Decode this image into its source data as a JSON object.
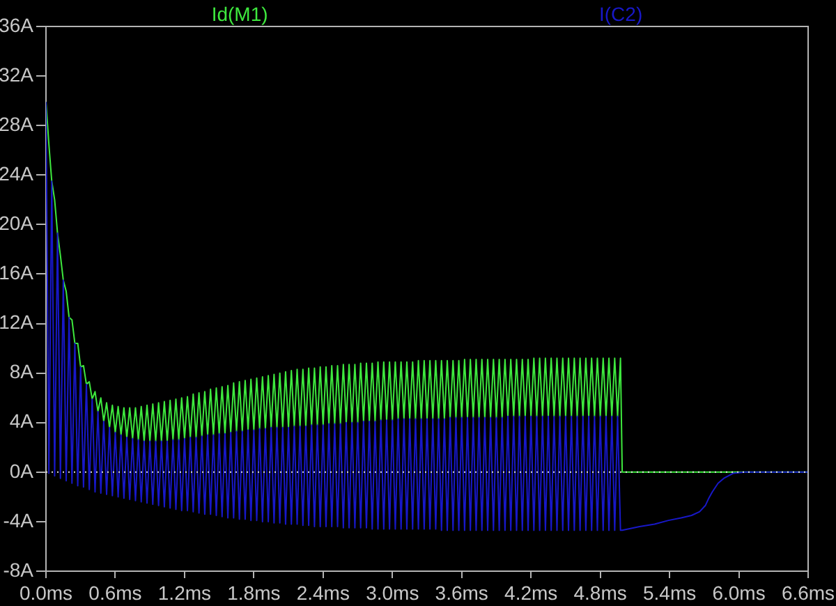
{
  "chart_data": {
    "type": "line",
    "x": [
      0,
      0.025,
      0.05,
      0.075,
      0.1,
      0.125,
      0.15,
      0.175,
      0.2,
      0.225,
      0.25,
      0.275,
      0.3,
      0.325,
      0.35,
      0.375,
      0.4,
      0.425,
      0.45,
      0.475,
      0.5,
      0.525,
      0.55,
      0.575,
      0.6,
      0.625,
      0.65,
      0.675,
      0.7,
      0.725,
      0.75,
      0.775,
      0.8,
      0.825,
      0.85,
      0.875,
      0.9,
      0.925,
      0.95,
      0.975,
      1,
      1.025,
      1.05,
      1.075,
      1.1,
      1.125,
      1.15,
      1.175,
      1.2,
      1.225,
      1.25,
      1.275,
      1.3,
      1.325,
      1.35,
      1.375,
      1.4,
      1.425,
      1.45,
      1.475,
      1.5,
      1.525,
      1.55,
      1.575,
      1.6,
      1.625,
      1.65,
      1.675,
      1.7,
      1.725,
      1.75,
      1.775,
      1.8,
      1.825,
      1.85,
      1.875,
      1.9,
      1.925,
      1.95,
      1.975,
      2,
      2.025,
      2.05,
      2.075,
      2.1,
      2.125,
      2.15,
      2.175,
      2.2,
      2.225,
      2.25,
      2.275,
      2.3,
      2.325,
      2.35,
      2.375,
      2.4,
      2.425,
      2.45,
      2.475,
      2.5,
      2.525,
      2.55,
      2.575,
      2.6,
      2.625,
      2.65,
      2.675,
      2.7,
      2.725,
      2.75,
      2.775,
      2.8,
      2.825,
      2.85,
      2.875,
      2.9,
      2.925,
      2.95,
      2.975,
      3,
      3.025,
      3.05,
      3.075,
      3.1,
      3.125,
      3.15,
      3.175,
      3.2,
      3.225,
      3.25,
      3.275,
      3.3,
      3.325,
      3.35,
      3.375,
      3.4,
      3.425,
      3.45,
      3.475,
      3.5,
      3.525,
      3.55,
      3.575,
      3.6,
      3.625,
      3.65,
      3.675,
      3.7,
      3.725,
      3.75,
      3.775,
      3.8,
      3.825,
      3.85,
      3.875,
      3.9,
      3.925,
      3.95,
      3.975,
      4,
      4.025,
      4.05,
      4.075,
      4.1,
      4.125,
      4.15,
      4.175,
      4.2,
      4.225,
      4.25,
      4.275,
      4.3,
      4.325,
      4.35,
      4.375,
      4.4,
      4.425,
      4.45,
      4.475,
      4.5,
      4.525,
      4.55,
      4.575,
      4.6,
      4.625,
      4.65,
      4.675,
      4.7,
      4.725,
      4.75,
      4.775,
      4.8,
      4.825,
      4.85,
      4.875,
      4.9,
      4.925,
      4.95,
      4.975,
      4.99,
      5.14,
      5.27,
      5.39,
      5.5,
      5.59,
      5.66,
      5.71,
      5.74,
      5.77,
      5.82,
      5.87,
      5.95,
      6.05,
      6.6
    ],
    "series": [
      {
        "name": "Id(M1)",
        "color": "#3ee83e",
        "values": [
          29.9,
          26.5,
          23.5,
          22,
          19.3,
          17.5,
          15.5,
          14.6,
          12.5,
          12.3,
          10.4,
          10.4,
          8.5,
          8.6,
          7.1,
          7.3,
          5.9,
          6.5,
          4.9,
          6,
          4.1,
          5.6,
          3.6,
          5.4,
          3.2,
          5.3,
          3,
          5.2,
          2.8,
          5.2,
          2.7,
          5.2,
          2.6,
          5.3,
          2.5,
          5.4,
          2.5,
          5.5,
          2.5,
          5.6,
          2.5,
          5.7,
          2.5,
          5.8,
          2.6,
          5.9,
          2.6,
          6,
          2.7,
          6.1,
          2.8,
          6.3,
          2.8,
          6.4,
          2.9,
          6.5,
          3,
          6.7,
          3,
          6.8,
          3.1,
          6.9,
          3.1,
          7,
          3.2,
          7.2,
          3.3,
          7.3,
          3.3,
          7.4,
          3.4,
          7.5,
          3.4,
          7.6,
          3.5,
          7.7,
          3.5,
          7.8,
          3.6,
          7.9,
          3.6,
          8,
          3.6,
          8.1,
          3.6,
          8.2,
          3.7,
          8.3,
          3.7,
          8.3,
          3.7,
          8.4,
          3.8,
          8.4,
          3.8,
          8.5,
          3.8,
          8.5,
          3.9,
          8.6,
          3.9,
          8.6,
          3.9,
          8.7,
          4,
          8.7,
          4,
          8.7,
          4,
          8.8,
          4.1,
          8.8,
          4.1,
          8.8,
          4.1,
          8.9,
          4.2,
          8.9,
          4.2,
          8.9,
          4.2,
          8.9,
          4.3,
          8.9,
          4.3,
          8.9,
          4.3,
          8.9,
          4.3,
          9,
          4.3,
          9,
          4.3,
          9,
          4.3,
          9,
          4.3,
          9,
          4.3,
          9,
          4.4,
          9,
          4.4,
          9,
          4.4,
          9.1,
          4.4,
          9.1,
          4.4,
          9.1,
          4.4,
          9.1,
          4.4,
          9.1,
          4.4,
          9.1,
          4.4,
          9.1,
          4.4,
          9.1,
          4.5,
          9.1,
          4.5,
          9.1,
          4.5,
          9.1,
          4.5,
          9.1,
          4.5,
          9.2,
          4.5,
          9.2,
          4.5,
          9.2,
          4.5,
          9.2,
          4.5,
          9.2,
          4.5,
          9.2,
          4.5,
          9.2,
          4.5,
          9.2,
          4.5,
          9.2,
          4.5,
          9.2,
          4.5,
          9.2,
          4.5,
          9.2,
          4.5,
          9.2,
          4.5,
          9.2,
          4.5,
          9.2,
          4.5,
          9.2,
          0,
          0,
          0,
          0,
          0,
          0,
          0,
          0,
          0,
          0,
          0,
          0,
          0,
          0,
          0
        ]
      },
      {
        "name": "I(C2)",
        "color": "#1818c8",
        "values": [
          29.9,
          -0.1,
          23.5,
          -0.3,
          19.3,
          -0.5,
          15.5,
          -0.7,
          12.5,
          -0.9,
          10.4,
          -1.1,
          8.5,
          -1.2,
          7.1,
          -1.4,
          5.9,
          -1.6,
          4.9,
          -1.7,
          4.1,
          -1.8,
          3.6,
          -1.9,
          3.2,
          -2,
          3,
          -2.1,
          2.8,
          -2.2,
          2.7,
          -2.3,
          2.6,
          -2.4,
          2.5,
          -2.5,
          2.5,
          -2.6,
          2.5,
          -2.7,
          2.5,
          -2.8,
          2.5,
          -2.9,
          2.6,
          -3,
          2.6,
          -3.1,
          2.7,
          -3.1,
          2.8,
          -3.2,
          2.8,
          -3.3,
          2.9,
          -3.4,
          3,
          -3.4,
          3,
          -3.5,
          3.1,
          -3.6,
          3.1,
          -3.7,
          3.2,
          -3.7,
          3.3,
          -3.8,
          3.3,
          -3.8,
          3.4,
          -3.9,
          3.4,
          -3.9,
          3.5,
          -4,
          3.5,
          -4,
          3.6,
          -4.1,
          3.6,
          -4.1,
          3.6,
          -4.2,
          3.6,
          -4.2,
          3.7,
          -4.2,
          3.7,
          -4.3,
          3.7,
          -4.3,
          3.8,
          -4.4,
          3.8,
          -4.4,
          3.8,
          -4.4,
          3.9,
          -4.4,
          3.9,
          -4.4,
          3.9,
          -4.5,
          4,
          -4.5,
          4,
          -4.5,
          4,
          -4.5,
          4.1,
          -4.5,
          4.1,
          -4.6,
          4.1,
          -4.6,
          4.2,
          -4.6,
          4.2,
          -4.6,
          4.2,
          -4.6,
          4.3,
          -4.6,
          4.3,
          -4.6,
          4.3,
          -4.6,
          4.3,
          -4.6,
          4.3,
          -4.6,
          4.3,
          -4.6,
          4.3,
          -4.6,
          4.3,
          -4.7,
          4.3,
          -4.7,
          4.4,
          -4.7,
          4.4,
          -4.7,
          4.4,
          -4.7,
          4.4,
          -4.7,
          4.4,
          -4.7,
          4.4,
          -4.7,
          4.4,
          -4.7,
          4.4,
          -4.7,
          4.4,
          -4.7,
          4.4,
          -4.7,
          4.5,
          -4.7,
          4.5,
          -4.7,
          4.5,
          -4.7,
          4.5,
          -4.7,
          4.5,
          -4.7,
          4.5,
          -4.7,
          4.5,
          -4.7,
          4.5,
          -4.7,
          4.5,
          -4.7,
          4.5,
          -4.7,
          4.5,
          -4.7,
          4.5,
          -4.7,
          4.5,
          -4.7,
          4.5,
          -4.7,
          4.5,
          -4.7,
          4.5,
          -4.7,
          4.5,
          -4.7,
          4.5,
          -4.7,
          4.5,
          -4.7,
          4.5,
          -4.7,
          -4.7,
          -4.4,
          -4.2,
          -3.9,
          -3.7,
          -3.5,
          -3.2,
          -2.7,
          -2.1,
          -1.6,
          -0.9,
          -0.5,
          -0.1,
          0,
          0
        ]
      }
    ],
    "xlim": [
      0,
      6.6
    ],
    "ylim": [
      -8,
      36
    ],
    "xticks": [
      {
        "value": 0,
        "label": "0.0ms"
      },
      {
        "value": 0.6,
        "label": "0.6ms"
      },
      {
        "value": 1.2,
        "label": "1.2ms"
      },
      {
        "value": 1.8,
        "label": "1.8ms"
      },
      {
        "value": 2.4,
        "label": "2.4ms"
      },
      {
        "value": 3,
        "label": "3.0ms"
      },
      {
        "value": 3.6,
        "label": "3.6ms"
      },
      {
        "value": 4.2,
        "label": "4.2ms"
      },
      {
        "value": 4.8,
        "label": "4.8ms"
      },
      {
        "value": 5.4,
        "label": "5.4ms"
      },
      {
        "value": 6,
        "label": "6.0ms"
      },
      {
        "value": 6.6,
        "label": "6.6ms"
      }
    ],
    "yticks": [
      {
        "value": -8,
        "label": "-8A"
      },
      {
        "value": -4,
        "label": "-4A"
      },
      {
        "value": 0,
        "label": "0A"
      },
      {
        "value": 4,
        "label": "4A"
      },
      {
        "value": 8,
        "label": "8A"
      },
      {
        "value": 12,
        "label": "12A"
      },
      {
        "value": 16,
        "label": "16A"
      },
      {
        "value": 20,
        "label": "20A"
      },
      {
        "value": 24,
        "label": "24A"
      },
      {
        "value": 28,
        "label": "28A"
      },
      {
        "value": 32,
        "label": "32A"
      },
      {
        "value": 36,
        "label": "36A"
      }
    ],
    "legend": "top",
    "ref_lines": [
      {
        "axis": "y",
        "value": 0,
        "color": "#e0e0e0",
        "line_style": "dotted"
      }
    ]
  }
}
